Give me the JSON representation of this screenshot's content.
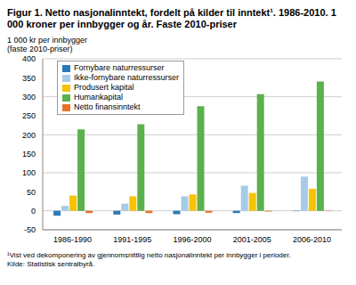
{
  "chart_data": {
    "type": "bar",
    "title": "Figur 1. Netto nasjonalinntekt, fordelt på kilder til inntekt¹. 1986-2010. 1 000 kroner per innbygger og år. Faste 2010-priser",
    "ylabel": "1 000 kr per innbygger (faste 2010-priser)",
    "annotations": [
      "¹Vist ved dekomponering av gjennomsnittlig netto nasjonalinntekt per innbygger i perioder.",
      "Kilde: Statistisk sentralbyrå."
    ],
    "categories": [
      "1986-1990",
      "1991-1995",
      "1996-2000",
      "2001-2005",
      "2006-2010"
    ],
    "series": [
      {
        "name": "Fornybare naturressurser",
        "color": "#2a7ab9",
        "values": [
          -13,
          -10,
          -9,
          -6,
          -1
        ]
      },
      {
        "name": "Ikke-fornybare naturressurser",
        "color": "#a6cbe6",
        "values": [
          13,
          19,
          38,
          66,
          90
        ]
      },
      {
        "name": "Produsert kapital",
        "color": "#f7c200",
        "values": [
          40,
          38,
          43,
          47,
          58
        ]
      },
      {
        "name": "Humankapital",
        "color": "#5bb14b",
        "values": [
          214,
          228,
          275,
          307,
          340
        ]
      },
      {
        "name": "Netto finansinntekt",
        "color": "#e8702a",
        "values": [
          -6,
          -6,
          -5,
          -2,
          -1
        ]
      }
    ],
    "ylim": [
      -50,
      400
    ],
    "yticks": [
      -50,
      0,
      50,
      100,
      150,
      200,
      250,
      300,
      350,
      400
    ],
    "grid": true,
    "legend": "upper left"
  }
}
